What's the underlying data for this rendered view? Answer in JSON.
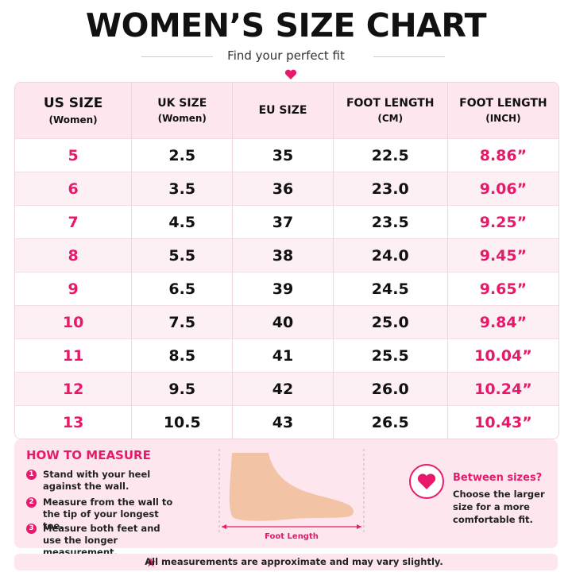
{
  "header": {
    "title": "WOMEN’S SIZE CHART",
    "subtitle": "Find your perfect fit"
  },
  "table": {
    "columns": [
      {
        "label": "US SIZE",
        "sub": "(Women)"
      },
      {
        "label": "UK SIZE",
        "sub": "(Women)"
      },
      {
        "label": "EU SIZE"
      },
      {
        "label": "FOOT LENGTH",
        "sub": "(CM)"
      },
      {
        "label": "FOOT LENGTH",
        "sub": "(INCH)"
      }
    ],
    "rows": [
      [
        "5",
        "2.5",
        "35",
        "22.5",
        "8.86”"
      ],
      [
        "6",
        "3.5",
        "36",
        "23.0",
        "9.06”"
      ],
      [
        "7",
        "4.5",
        "37",
        "23.5",
        "9.25”"
      ],
      [
        "8",
        "5.5",
        "38",
        "24.0",
        "9.45”"
      ],
      [
        "9",
        "6.5",
        "39",
        "24.5",
        "9.65”"
      ],
      [
        "10",
        "7.5",
        "40",
        "25.0",
        "9.84”"
      ],
      [
        "11",
        "8.5",
        "41",
        "25.5",
        "10.04”"
      ],
      [
        "12",
        "9.5",
        "42",
        "26.0",
        "10.24”"
      ],
      [
        "13",
        "10.5",
        "43",
        "26.5",
        "10.43”"
      ]
    ]
  },
  "measure": {
    "title": "HOW TO MEASURE",
    "steps": [
      {
        "number": "1",
        "text": "Stand with your heel against the wall."
      },
      {
        "number": "2",
        "text": "Measure from the wall to the tip of your longest toe."
      },
      {
        "number": "3",
        "text": "Measure both feet and use the longer measurement."
      }
    ],
    "diagram_label": "Foot Length"
  },
  "tip": {
    "title": "Between sizes?",
    "text": "Choose the larger size for a more comfortable fit."
  },
  "footer": {
    "note": "All measurements are approximate and may vary slightly."
  }
}
